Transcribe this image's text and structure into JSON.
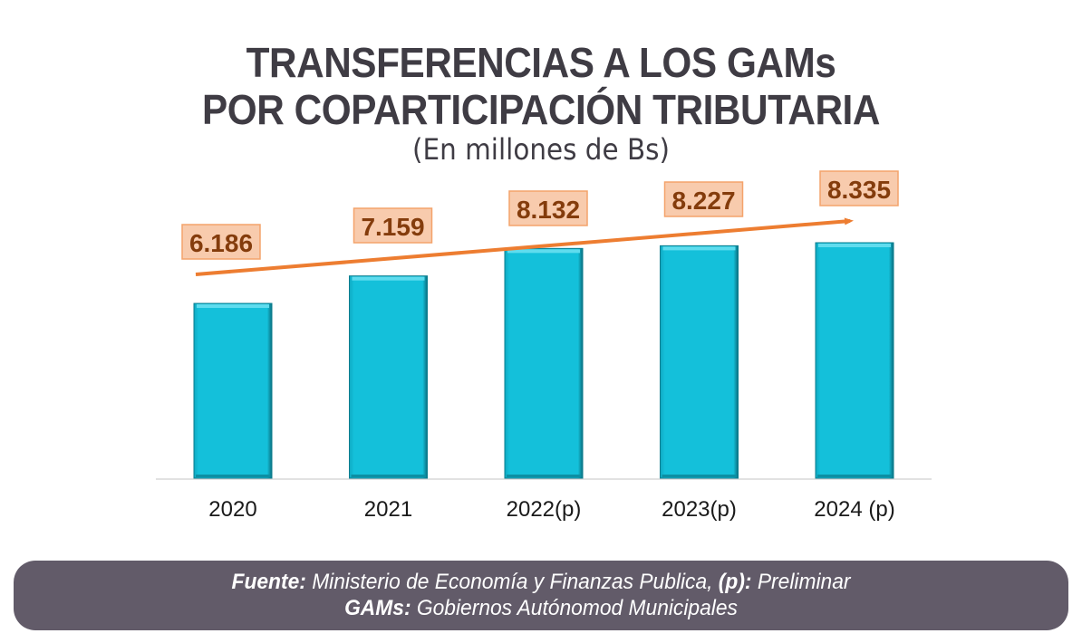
{
  "chart_data": {
    "type": "bar",
    "title_line1": "TRANSFERENCIAS A LOS GAMs",
    "title_line2": "POR COPARTICIPACIÓN TRIBUTARIA",
    "subtitle": "(En millones de Bs)",
    "categories": [
      "2020",
      "2021",
      "2022(p)",
      "2023(p)",
      "2024 (p)"
    ],
    "values": [
      6186,
      7159,
      8132,
      8227,
      8335
    ],
    "data_labels": [
      "6.186",
      "7.159",
      "8.132",
      "8.227",
      "8.335"
    ],
    "xlabel": "",
    "ylabel": "",
    "ylim": [
      0,
      8335
    ],
    "grid": false,
    "trend_arrow": true,
    "colors": {
      "bar": "#12bcd6",
      "bar_edge": "#0a7c8e",
      "label_fill": "#f8cbad",
      "label_border": "#f4a36b",
      "label_text": "#843c0c",
      "trend": "#ed7d31",
      "axis": "#d9d9d9"
    }
  },
  "footer": {
    "line1_bold": "Fuente:",
    "line1_text": " Ministerio de Economía y Finanzas Publica, ",
    "line1_bold2": "(p):",
    "line1_text2": " Preliminar",
    "line2_bold": "GAMs:",
    "line2_text": " Gobiernos Autónomod Municipales",
    "background": "#625b69"
  }
}
